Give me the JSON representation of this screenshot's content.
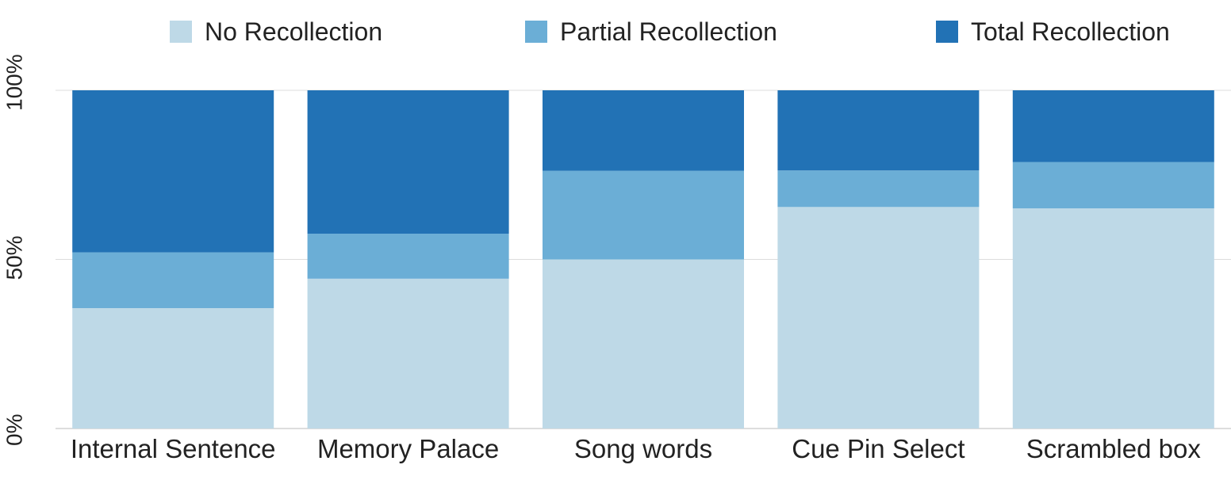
{
  "chart_data": {
    "type": "bar",
    "stacked": true,
    "normalized": true,
    "categories": [
      "Internal Sentence",
      "Memory Palace",
      "Song words",
      "Cue Pin Select",
      "Scrambled box"
    ],
    "series": [
      {
        "name": "No Recollection",
        "color": "#bed9e7",
        "values": [
          35.6,
          44.3,
          50.0,
          65.5,
          65.1
        ]
      },
      {
        "name": "Partial Recollection",
        "color": "#6baed6",
        "values": [
          16.5,
          13.3,
          26.2,
          10.8,
          13.7
        ]
      },
      {
        "name": "Total Recollection",
        "color": "#2272b5",
        "values": [
          47.9,
          42.4,
          23.8,
          23.7,
          21.2
        ]
      }
    ],
    "yticks": [
      "0%",
      "50%",
      "100%"
    ],
    "ylim": [
      0,
      100
    ],
    "grid": true,
    "legend_position": "top",
    "title": "",
    "xlabel": "",
    "ylabel": ""
  }
}
